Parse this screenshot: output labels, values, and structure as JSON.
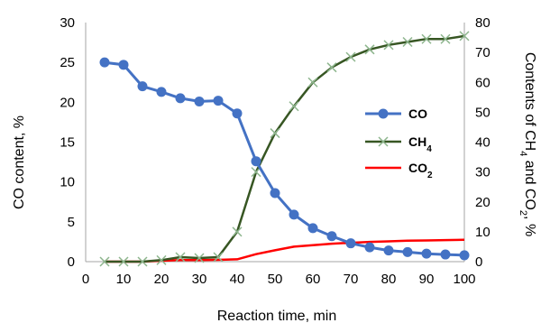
{
  "chart_data": {
    "type": "line",
    "xlabel": "Reaction time, min",
    "ylabel": "CO content, %",
    "y2label_parts": [
      "Contents of CH",
      "4",
      " and CO",
      "2",
      ", %"
    ],
    "xlim": [
      0,
      100
    ],
    "ylim": [
      0,
      30
    ],
    "y2lim": [
      0,
      80
    ],
    "xticks": [
      "0",
      "10",
      "20",
      "30",
      "40",
      "50",
      "60",
      "70",
      "80",
      "90",
      "100"
    ],
    "yticks": [
      "0",
      "5",
      "10",
      "15",
      "20",
      "25",
      "30"
    ],
    "y2ticks": [
      "0",
      "10",
      "20",
      "30",
      "40",
      "50",
      "60",
      "70",
      "80"
    ],
    "grid": false,
    "legend_position": "right-middle",
    "series": [
      {
        "name": "CO",
        "axis": "left",
        "color": "#4472C4",
        "marker": "circle",
        "x": [
          5,
          10,
          15,
          20,
          25,
          30,
          35,
          40,
          45,
          50,
          55,
          60,
          65,
          70,
          75,
          80,
          85,
          90,
          95,
          100
        ],
        "y": [
          25.0,
          24.7,
          22.0,
          21.3,
          20.5,
          20.1,
          20.2,
          18.6,
          12.6,
          8.6,
          5.9,
          4.2,
          3.2,
          2.3,
          1.8,
          1.4,
          1.2,
          1.0,
          0.9,
          0.8
        ]
      },
      {
        "name": "CH",
        "name_sub": "4",
        "axis": "right",
        "color": "#375623",
        "marker_color": "#8DB58D",
        "marker": "x",
        "x": [
          5,
          10,
          15,
          20,
          25,
          30,
          35,
          40,
          45,
          50,
          55,
          60,
          65,
          70,
          75,
          80,
          85,
          90,
          95,
          100
        ],
        "y": [
          0,
          0,
          0,
          0.5,
          1.5,
          1.2,
          1.5,
          10,
          30,
          43,
          52,
          60,
          65,
          68.5,
          71,
          72.5,
          73.5,
          74.5,
          74.5,
          75.5
        ]
      },
      {
        "name": "CO",
        "name_sub": "2",
        "axis": "right",
        "color": "#FF0000",
        "marker": "none",
        "x": [
          5,
          10,
          15,
          20,
          25,
          30,
          35,
          40,
          45,
          50,
          55,
          60,
          65,
          70,
          75,
          80,
          85,
          90,
          95,
          100
        ],
        "y": [
          0,
          0,
          0,
          0.3,
          0.5,
          0.5,
          0.6,
          0.8,
          2.5,
          3.8,
          5.0,
          5.5,
          6.0,
          6.3,
          6.6,
          6.8,
          7.0,
          7.1,
          7.2,
          7.3
        ]
      }
    ]
  }
}
